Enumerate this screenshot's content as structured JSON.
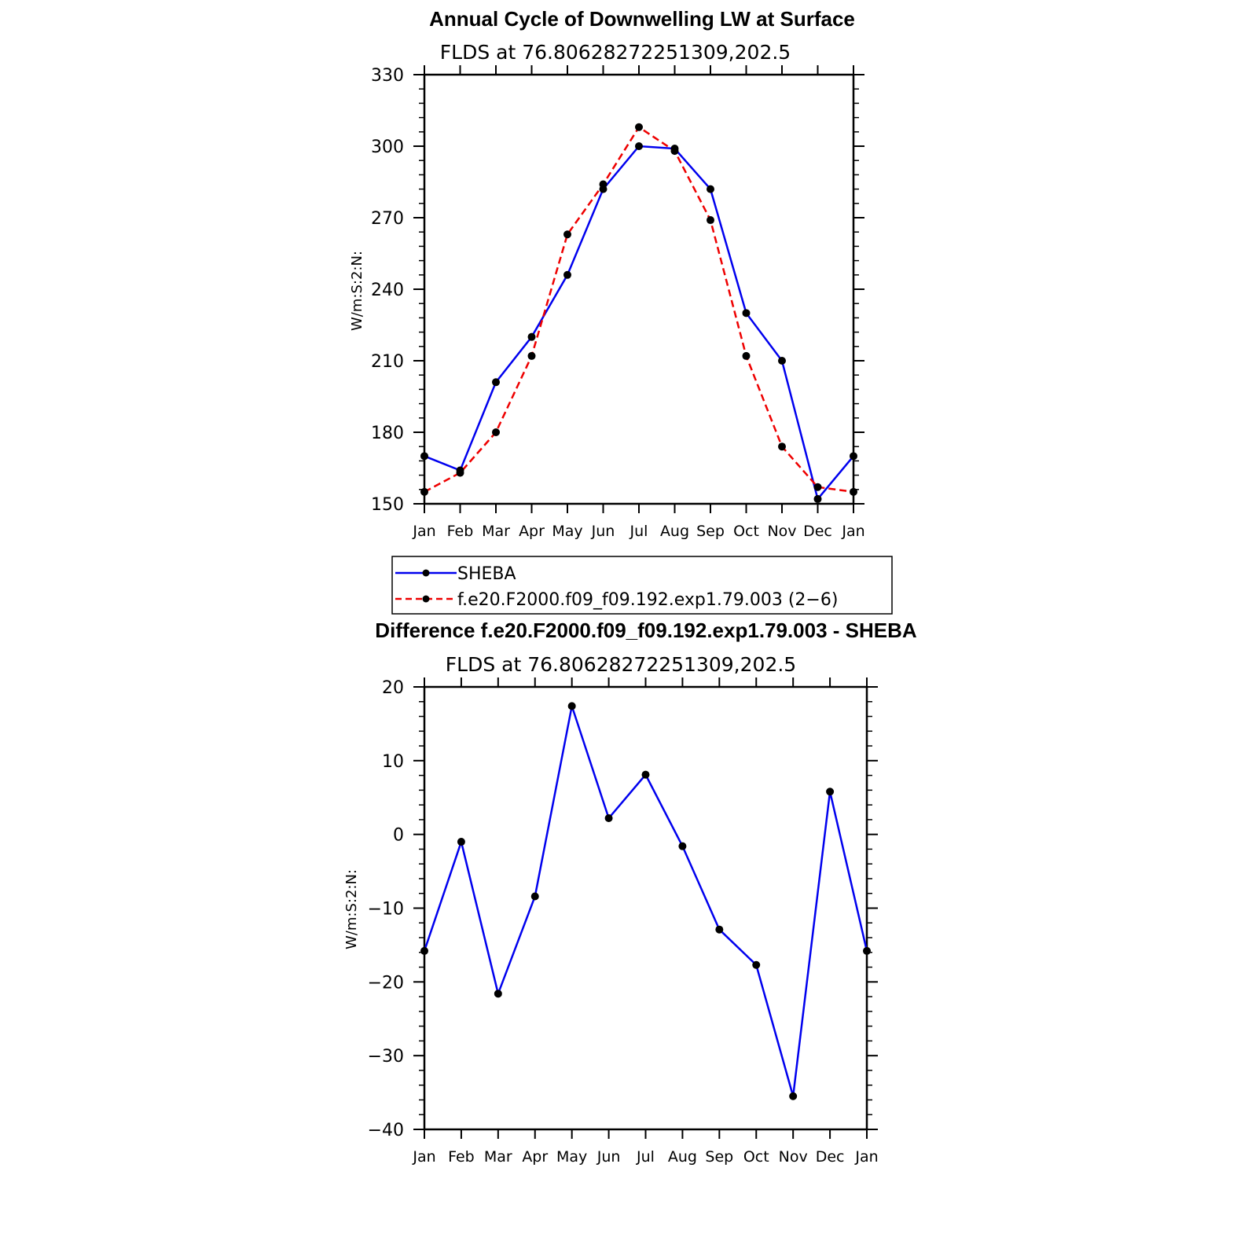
{
  "chart_data": [
    {
      "type": "line",
      "title": "Annual Cycle of Downwelling LW at Surface",
      "subtitle": "FLDS at 76.80628272251309,202.5",
      "ylabel": "W/m:S:2:N:",
      "categories": [
        "Jan",
        "Feb",
        "Mar",
        "Apr",
        "May",
        "Jun",
        "Jul",
        "Aug",
        "Sep",
        "Oct",
        "Nov",
        "Dec",
        "Jan"
      ],
      "ylim": [
        150,
        330
      ],
      "yticks": [
        150,
        180,
        210,
        240,
        270,
        300,
        330
      ],
      "ytick_labels": [
        "150",
        "180",
        "210",
        "240",
        "270",
        "300",
        "330"
      ],
      "series": [
        {
          "name": "SHEBA",
          "color": "#0000ee",
          "dash": "solid",
          "values": [
            170,
            164,
            201,
            220,
            246,
            282,
            300,
            299,
            282,
            230,
            210,
            152,
            170
          ]
        },
        {
          "name": "f.e20.F2000.f09_f09.192.exp1.79.003 (2−6)",
          "color": "#ee0000",
          "dash": "dashed",
          "values": [
            155,
            163,
            180,
            212,
            263,
            284,
            308,
            298,
            269,
            212,
            174,
            157,
            155
          ]
        }
      ],
      "legend": "below"
    },
    {
      "type": "line",
      "title": "Difference f.e20.F2000.f09_f09.192.exp1.79.003 - SHEBA",
      "subtitle": "FLDS at 76.80628272251309,202.5",
      "ylabel": "W/m:S:2:N:",
      "categories": [
        "Jan",
        "Feb",
        "Mar",
        "Apr",
        "May",
        "Jun",
        "Jul",
        "Aug",
        "Sep",
        "Oct",
        "Nov",
        "Dec",
        "Jan"
      ],
      "ylim": [
        -40,
        20
      ],
      "yticks": [
        -40,
        -30,
        -20,
        -10,
        0,
        10,
        20
      ],
      "ytick_labels": [
        "−40",
        "−30",
        "−20",
        "−10",
        "0",
        "10",
        "20"
      ],
      "series": [
        {
          "color": "#0000ee",
          "dash": "solid",
          "values": [
            -15.8,
            -1,
            -21.6,
            -8.4,
            17.4,
            2.2,
            8.1,
            -1.6,
            -12.9,
            -17.7,
            -35.5,
            5.8,
            -15.8
          ]
        }
      ]
    }
  ]
}
